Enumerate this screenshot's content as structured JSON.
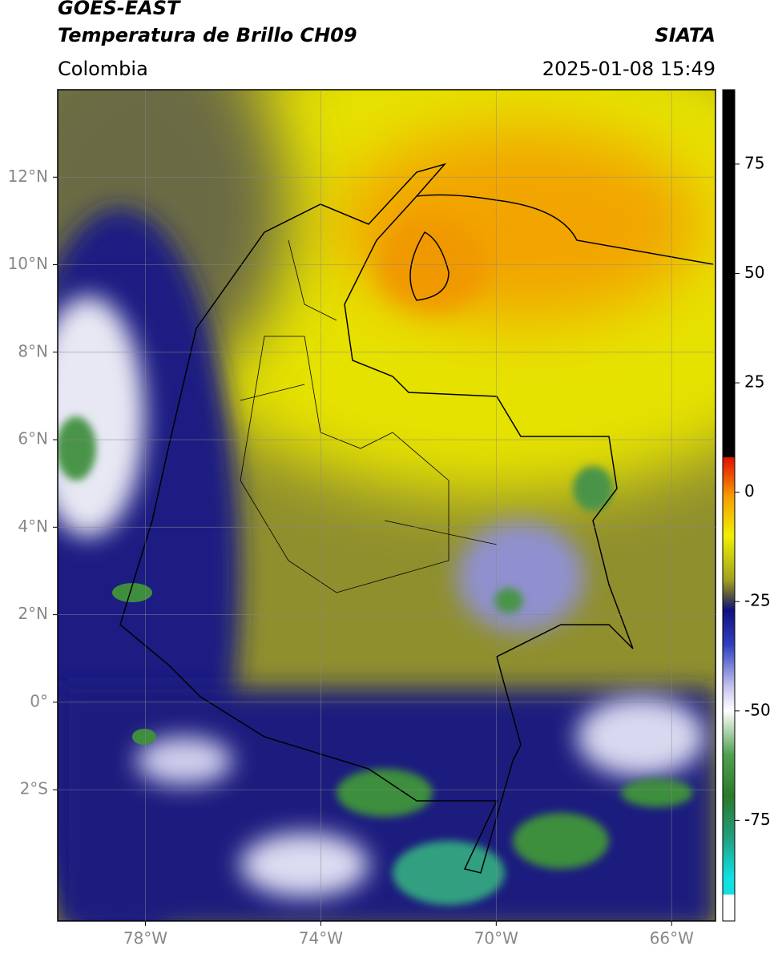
{
  "header": {
    "title": "GOES-EAST",
    "subtitle": "Temperatura de Brillo CH09",
    "source": "SIATA",
    "region": "Colombia",
    "datetime": "2025-01-08 15:49"
  },
  "map": {
    "lon_lim": [
      -80,
      -65
    ],
    "lat_lim": [
      -5,
      14
    ],
    "lat_ticks": [
      {
        "value": 12,
        "label": "12°N"
      },
      {
        "value": 10,
        "label": "10°N"
      },
      {
        "value": 8,
        "label": "8°N"
      },
      {
        "value": 6,
        "label": "6°N"
      },
      {
        "value": 4,
        "label": "4°N"
      },
      {
        "value": 2,
        "label": "2°N"
      },
      {
        "value": 0,
        "label": "0°"
      },
      {
        "value": -2,
        "label": "2°S"
      }
    ],
    "lon_ticks": [
      {
        "value": -78,
        "label": "78°W"
      },
      {
        "value": -74,
        "label": "74°W"
      },
      {
        "value": -70,
        "label": "70°W"
      },
      {
        "value": -66,
        "label": "66°W"
      }
    ]
  },
  "colorbar": {
    "lim": [
      -98,
      92
    ],
    "ticks": [
      75,
      50,
      25,
      0,
      -25,
      -50,
      -75
    ]
  }
}
